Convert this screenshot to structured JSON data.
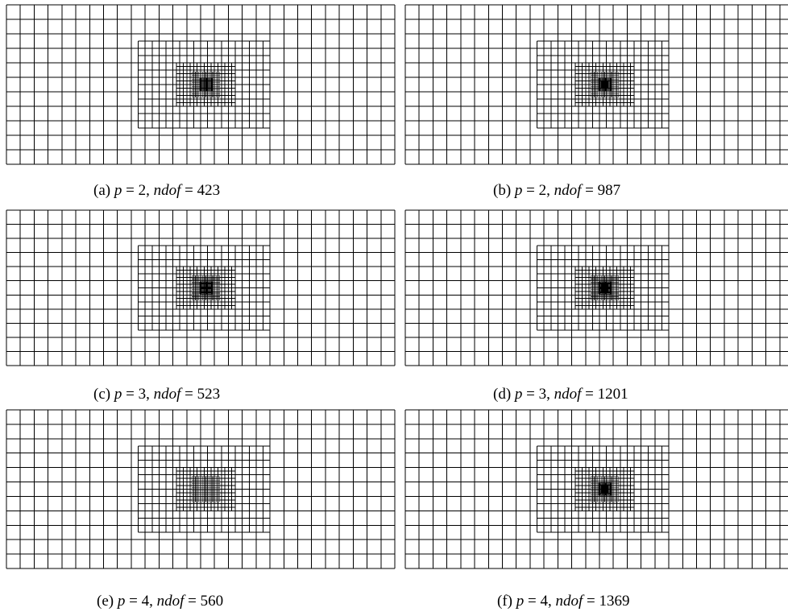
{
  "figure": {
    "panels": [
      {
        "tag": "(a)",
        "p_value": "2",
        "ndof_value": "423",
        "refine_levels": 4
      },
      {
        "tag": "(b)",
        "p_value": "2",
        "ndof_value": "987",
        "refine_levels": 5
      },
      {
        "tag": "(c)",
        "p_value": "3",
        "ndof_value": "523",
        "refine_levels": 4
      },
      {
        "tag": "(d)",
        "p_value": "3",
        "ndof_value": "1201",
        "refine_levels": 5
      },
      {
        "tag": "(e)",
        "p_value": "4",
        "ndof_value": "560",
        "refine_levels": 3
      },
      {
        "tag": "(f)",
        "p_value": "4",
        "ndof_value": "1369",
        "refine_levels": 5
      }
    ],
    "symbols": {
      "p": "p",
      "ndof": "ndof",
      "eq": " = ",
      "sep": ", "
    },
    "base_grid": {
      "cols": 28,
      "rows": 11
    },
    "line_color": "#000000"
  }
}
